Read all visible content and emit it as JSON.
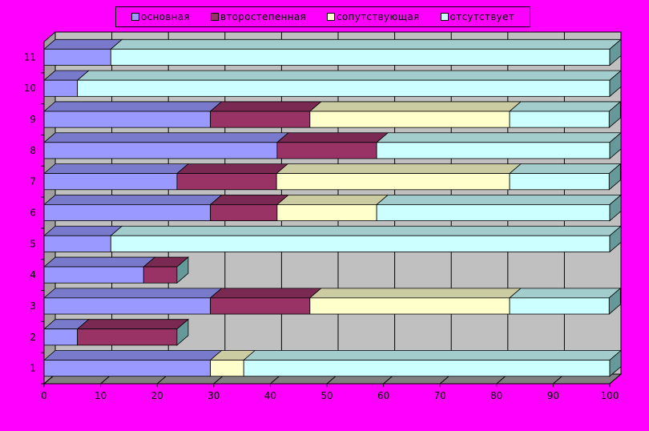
{
  "legend": [
    {
      "label": "основная",
      "color": "#9999ff"
    },
    {
      "label": "второстепенная",
      "color": "#993366"
    },
    {
      "label": "сопутствующая",
      "color": "#ffffcc"
    },
    {
      "label": "отсутствует",
      "color": "#ccffff"
    }
  ],
  "chart_data": {
    "type": "bar",
    "orientation": "horizontal",
    "stacked": true,
    "percent_axis": true,
    "title": "",
    "xlabel": "",
    "ylabel": "",
    "xlim": [
      0,
      100
    ],
    "xticks": [
      "0",
      "10",
      "20",
      "30",
      "40",
      "50",
      "60",
      "70",
      "80",
      "90",
      "100"
    ],
    "categories": [
      "1",
      "2",
      "3",
      "4",
      "5",
      "6",
      "7",
      "8",
      "9",
      "10",
      "11"
    ],
    "series": [
      {
        "name": "основная",
        "color": "#9999ff",
        "values": [
          29.4,
          5.9,
          29.4,
          17.6,
          11.8,
          29.4,
          23.5,
          41.2,
          29.4,
          5.9,
          11.8
        ]
      },
      {
        "name": "второстепенная",
        "color": "#993366",
        "values": [
          0,
          17.6,
          17.6,
          5.9,
          0,
          11.8,
          17.6,
          17.6,
          17.6,
          0,
          0
        ]
      },
      {
        "name": "сопутствующая",
        "color": "#ffffcc",
        "values": [
          5.9,
          0,
          35.3,
          0,
          0,
          17.6,
          41.2,
          0,
          35.3,
          0,
          0
        ]
      },
      {
        "name": "отсутствует",
        "color": "#ccffff",
        "values": [
          64.7,
          0,
          17.6,
          0,
          88.2,
          41.2,
          17.6,
          41.2,
          17.6,
          94.1,
          88.2
        ]
      }
    ],
    "grid": true,
    "background": "#c0c0c0",
    "legend_position": "top"
  }
}
